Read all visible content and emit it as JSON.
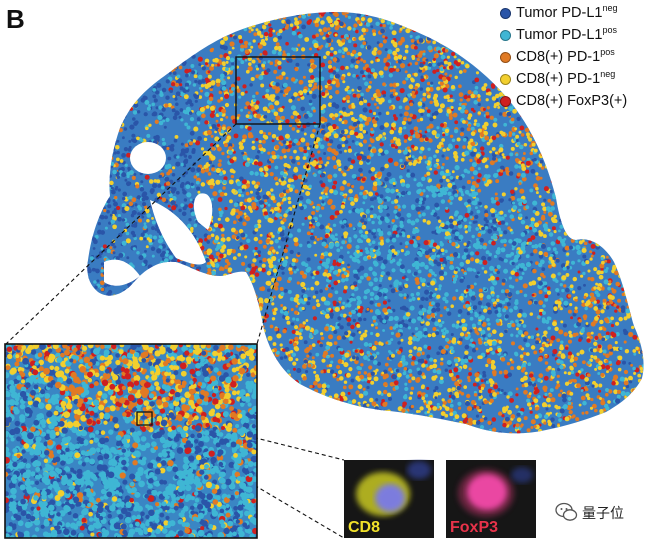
{
  "panel_label": "B",
  "legend": [
    {
      "base": "Tumor PD-L1",
      "sup": "neg",
      "color": "#2a55a8"
    },
    {
      "base": "Tumor PD-L1",
      "sup": "pos",
      "color": "#3fb6d4"
    },
    {
      "base": "CD8(+) PD-1",
      "sup": "pos",
      "color": "#e07a24"
    },
    {
      "base": "CD8(+) PD-1",
      "sup": "neg",
      "color": "#f2cf2e"
    },
    {
      "base": "CD8(+) FoxP3(+)",
      "sup": "",
      "color": "#cf2020"
    }
  ],
  "thumbnails": [
    {
      "label": "CD8",
      "label_color": "#f2e22a"
    },
    {
      "label": "FoxP3",
      "label_color": "#e8334a"
    }
  ],
  "watermark": {
    "text": "量子位",
    "icon": "wechat-bubble-icon"
  }
}
